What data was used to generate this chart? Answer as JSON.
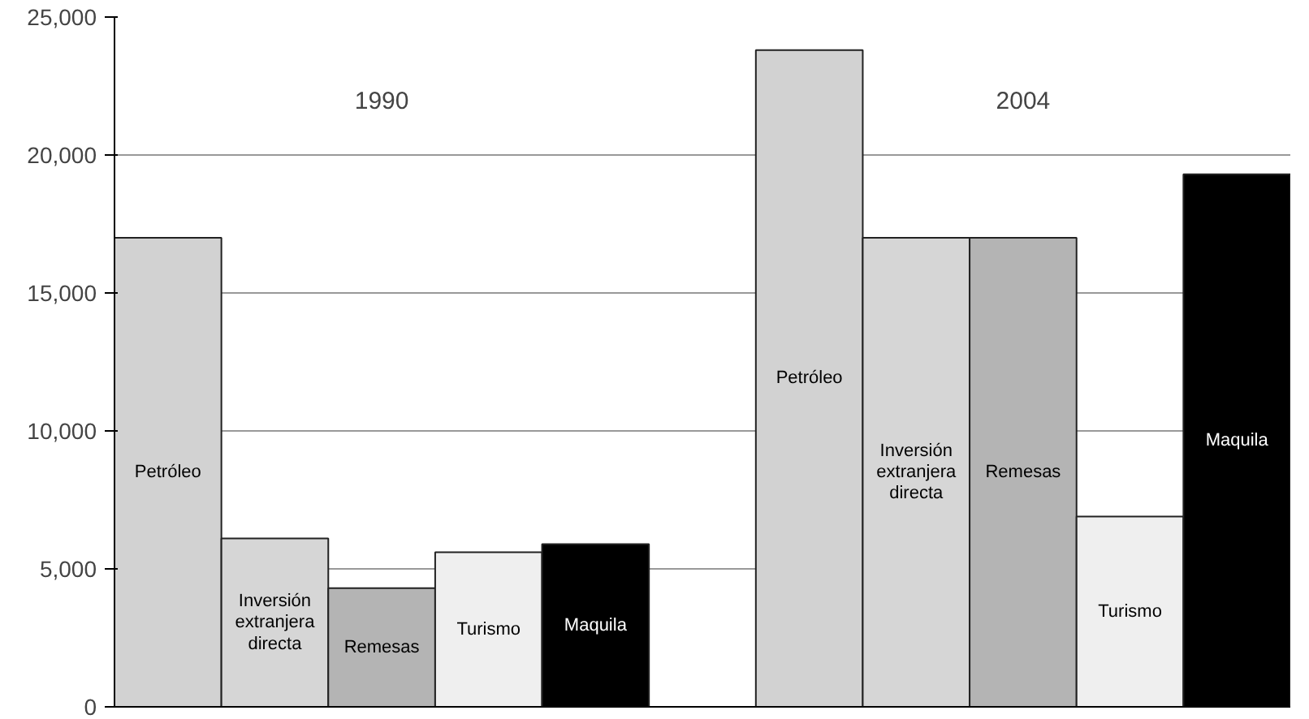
{
  "chart_data": {
    "type": "bar",
    "categories": [
      "Petróleo",
      "Inversión extranjera directa",
      "Remesas",
      "Turismo",
      "Maquila",
      null,
      "Petróleo",
      "Inversión extranjera directa",
      "Remesas",
      "Turismo",
      "Maquila"
    ],
    "values": [
      17000,
      6100,
      4300,
      5600,
      5900,
      null,
      23800,
      17000,
      17000,
      6900,
      19300
    ],
    "colors": [
      "#d2d2d2",
      "#d6d6d6",
      "#b4b4b4",
      "#efefef",
      "#000000",
      "#ffffff",
      "#d2d2d2",
      "#d6d6d6",
      "#b4b4b4",
      "#efefef",
      "#000000"
    ],
    "annotations": [
      "1990",
      "2004"
    ],
    "ylim": [
      0,
      25000
    ],
    "yticks": [
      {
        "value": 0,
        "label": "0"
      },
      {
        "value": 5000,
        "label": "5,000"
      },
      {
        "value": 10000,
        "label": "10,000"
      },
      {
        "value": 15000,
        "label": "15,000"
      },
      {
        "value": 20000,
        "label": "20,000"
      },
      {
        "value": 25000,
        "label": "25,000"
      }
    ],
    "grid": "y"
  }
}
